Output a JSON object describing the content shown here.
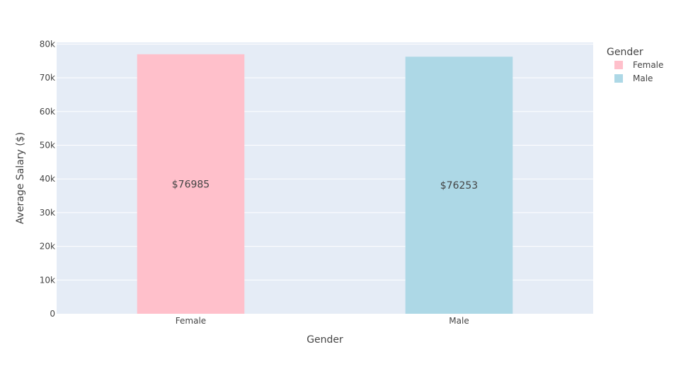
{
  "chart_data": {
    "type": "bar",
    "categories": [
      "Female",
      "Male"
    ],
    "values": [
      76985,
      76253
    ],
    "value_labels": [
      "$76985",
      "$76253"
    ],
    "colors": {
      "Female": "#ffc0cb",
      "Male": "#add8e6"
    },
    "xlabel": "Gender",
    "ylabel": "Average Salary ($)",
    "ylim": [
      0,
      80500
    ],
    "yticks": [
      0,
      10000,
      20000,
      30000,
      40000,
      50000,
      60000,
      70000,
      80000
    ],
    "ytick_labels": [
      "0",
      "10k",
      "20k",
      "30k",
      "40k",
      "50k",
      "60k",
      "70k",
      "80k"
    ],
    "grid": true,
    "legend": {
      "title": "Gender",
      "position": "top-right",
      "entries": [
        "Female",
        "Male"
      ]
    }
  },
  "style": {
    "plot_background": "#e5ecf6",
    "grid_color": "#ffffff",
    "text_color": "#444444"
  }
}
